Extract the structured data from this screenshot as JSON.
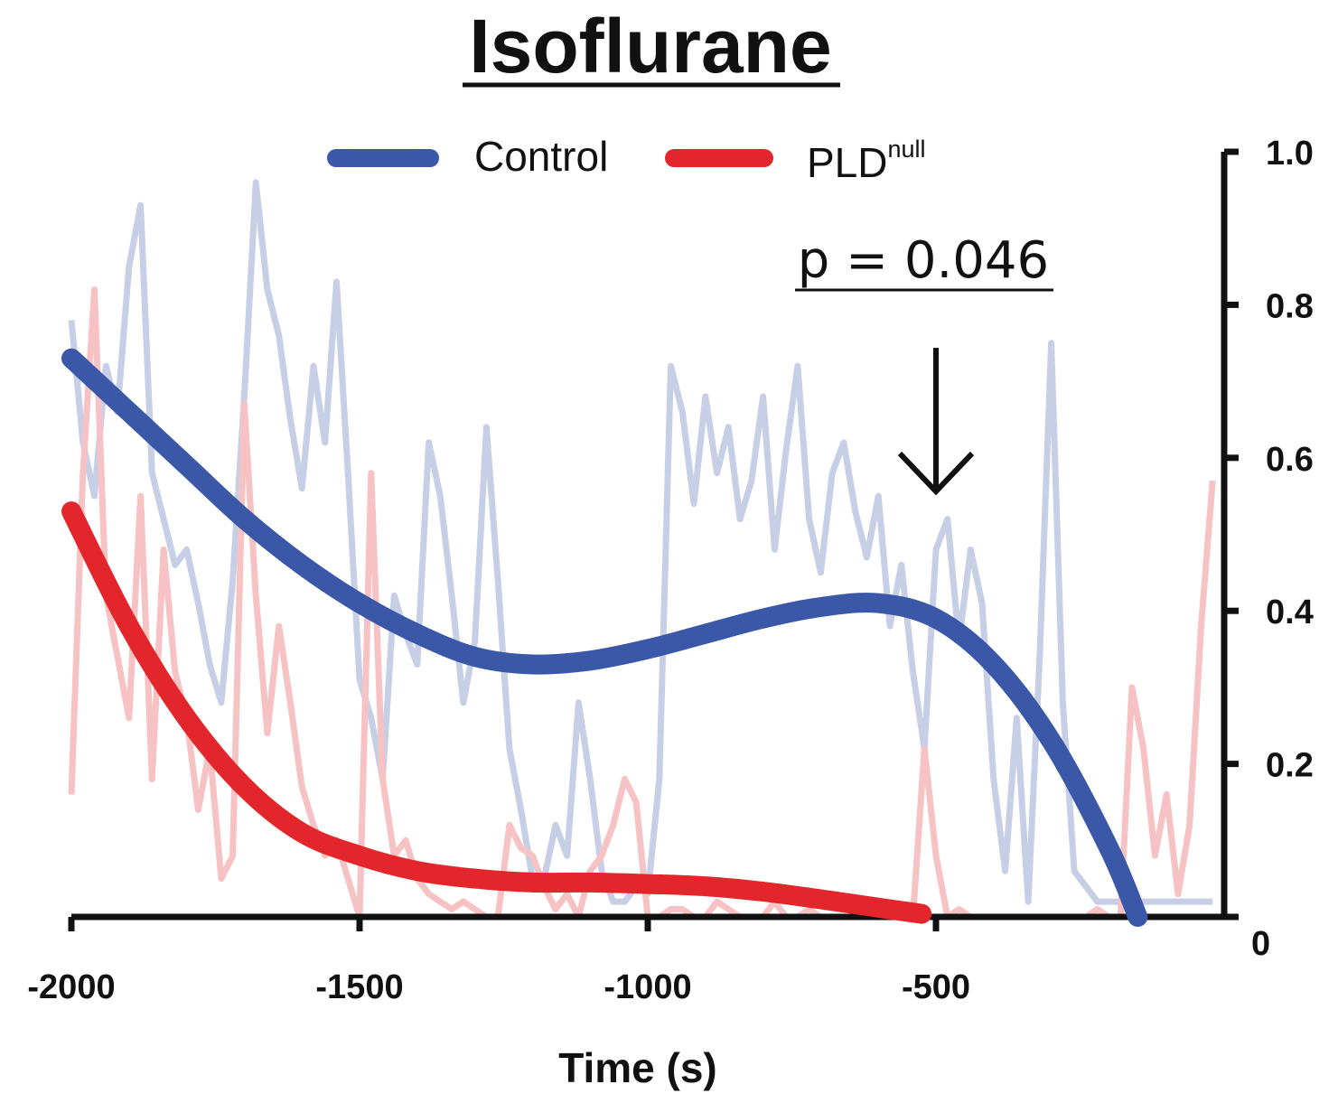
{
  "chart_data": {
    "type": "line",
    "title": "Isoflurane",
    "xlabel": "Time (s)",
    "ylabel": "",
    "xlim": [
      -2000,
      0
    ],
    "ylim": [
      0,
      1.0
    ],
    "y_axis_side": "right",
    "x_ticks": [
      -2000,
      -1500,
      -1000,
      -500
    ],
    "x_tick_labels": [
      "-2000",
      "-1500",
      "-1000",
      "-500"
    ],
    "y_ticks": [
      0,
      0.2,
      0.4,
      0.6,
      0.8,
      1.0
    ],
    "y_tick_labels": [
      "0",
      "0.2",
      "0.4",
      "0.6",
      "0.8",
      "1.0"
    ],
    "legend_position": "top",
    "grid": false,
    "annotation": {
      "text": "p = 0.046",
      "arrow_x": -500
    },
    "series": [
      {
        "name": "Control",
        "legend_main": "Control",
        "legend_sup": "",
        "color": "#3a57a8",
        "role": "fit",
        "x": [
          -2000,
          -1900,
          -1800,
          -1700,
          -1600,
          -1500,
          -1400,
          -1300,
          -1200,
          -1100,
          -1000,
          -900,
          -800,
          -700,
          -600,
          -500,
          -400,
          -300,
          -200,
          -150
        ],
        "y": [
          0.73,
          0.66,
          0.59,
          0.52,
          0.46,
          0.41,
          0.37,
          0.34,
          0.33,
          0.335,
          0.35,
          0.37,
          0.39,
          0.405,
          0.41,
          0.39,
          0.33,
          0.23,
          0.09,
          0.0
        ]
      },
      {
        "name": "PLD null",
        "legend_main": "PLD",
        "legend_sup": "null",
        "color": "#e3262b",
        "role": "fit",
        "x": [
          -2000,
          -1900,
          -1800,
          -1700,
          -1600,
          -1500,
          -1400,
          -1300,
          -1200,
          -1100,
          -1000,
          -900,
          -800,
          -700,
          -600,
          -525
        ],
        "y": [
          0.53,
          0.38,
          0.26,
          0.17,
          0.11,
          0.08,
          0.06,
          0.05,
          0.045,
          0.045,
          0.043,
          0.04,
          0.033,
          0.023,
          0.012,
          0.004
        ]
      },
      {
        "name": "Control raw",
        "color": "#c7cfe6",
        "role": "raw",
        "x": [
          -2000,
          -1980,
          -1960,
          -1940,
          -1920,
          -1900,
          -1880,
          -1860,
          -1840,
          -1820,
          -1800,
          -1780,
          -1760,
          -1740,
          -1720,
          -1700,
          -1680,
          -1660,
          -1640,
          -1620,
          -1600,
          -1580,
          -1560,
          -1540,
          -1520,
          -1500,
          -1480,
          -1460,
          -1440,
          -1420,
          -1400,
          -1380,
          -1360,
          -1340,
          -1320,
          -1300,
          -1280,
          -1260,
          -1240,
          -1220,
          -1200,
          -1180,
          -1160,
          -1140,
          -1120,
          -1100,
          -1080,
          -1060,
          -1040,
          -1020,
          -1000,
          -980,
          -960,
          -940,
          -920,
          -900,
          -880,
          -860,
          -840,
          -820,
          -800,
          -780,
          -760,
          -740,
          -720,
          -700,
          -680,
          -660,
          -640,
          -620,
          -600,
          -580,
          -560,
          -540,
          -520,
          -500,
          -480,
          -460,
          -440,
          -420,
          -400,
          -380,
          -360,
          -340,
          -320,
          -300,
          -280,
          -260,
          -240,
          -220,
          -200,
          -180,
          -160,
          -140,
          -120,
          -100,
          -80,
          -60,
          -40,
          -20
        ],
        "y": [
          0.78,
          0.62,
          0.55,
          0.72,
          0.66,
          0.85,
          0.93,
          0.58,
          0.52,
          0.46,
          0.48,
          0.41,
          0.33,
          0.28,
          0.44,
          0.68,
          0.96,
          0.82,
          0.76,
          0.65,
          0.56,
          0.72,
          0.62,
          0.83,
          0.58,
          0.31,
          0.26,
          0.18,
          0.42,
          0.37,
          0.33,
          0.62,
          0.55,
          0.42,
          0.28,
          0.36,
          0.64,
          0.44,
          0.22,
          0.14,
          0.05,
          0.05,
          0.12,
          0.08,
          0.28,
          0.18,
          0.06,
          0.02,
          0.02,
          0.04,
          0.03,
          0.18,
          0.72,
          0.66,
          0.54,
          0.68,
          0.58,
          0.64,
          0.52,
          0.57,
          0.68,
          0.48,
          0.61,
          0.72,
          0.52,
          0.45,
          0.58,
          0.62,
          0.53,
          0.47,
          0.55,
          0.38,
          0.46,
          0.32,
          0.22,
          0.48,
          0.52,
          0.36,
          0.48,
          0.41,
          0.18,
          0.06,
          0.26,
          0.02,
          0.34,
          0.75,
          0.28,
          0.06,
          0.04,
          0.02,
          0.02,
          0.02,
          0.02,
          0.02,
          0.02,
          0.02,
          0.02,
          0.02,
          0.02,
          0.02
        ]
      },
      {
        "name": "PLD null raw",
        "color": "#f7c2c3",
        "role": "raw",
        "x": [
          -2000,
          -1980,
          -1960,
          -1940,
          -1920,
          -1900,
          -1880,
          -1860,
          -1840,
          -1820,
          -1800,
          -1780,
          -1760,
          -1740,
          -1720,
          -1700,
          -1680,
          -1660,
          -1640,
          -1620,
          -1600,
          -1580,
          -1560,
          -1540,
          -1520,
          -1500,
          -1480,
          -1460,
          -1440,
          -1420,
          -1400,
          -1380,
          -1360,
          -1340,
          -1320,
          -1300,
          -1280,
          -1260,
          -1240,
          -1220,
          -1200,
          -1180,
          -1160,
          -1140,
          -1120,
          -1100,
          -1080,
          -1060,
          -1040,
          -1020,
          -1000,
          -980,
          -960,
          -940,
          -920,
          -900,
          -880,
          -860,
          -840,
          -820,
          -800,
          -780,
          -760,
          -740,
          -720,
          -700,
          -680,
          -660,
          -640,
          -620,
          -600,
          -580,
          -560,
          -540,
          -520,
          -500,
          -480,
          -460,
          -440,
          -420,
          -400,
          -380,
          -360,
          -340,
          -320,
          -300,
          -280,
          -260,
          -240,
          -220,
          -200,
          -180,
          -160,
          -140,
          -120,
          -100,
          -80,
          -60,
          -40,
          -20
        ],
        "y": [
          0.16,
          0.58,
          0.82,
          0.42,
          0.34,
          0.26,
          0.55,
          0.18,
          0.48,
          0.32,
          0.26,
          0.14,
          0.22,
          0.05,
          0.08,
          0.67,
          0.42,
          0.24,
          0.38,
          0.28,
          0.17,
          0.12,
          0.08,
          0.1,
          0.05,
          0.0,
          0.58,
          0.18,
          0.08,
          0.1,
          0.05,
          0.03,
          0.02,
          0.01,
          0.02,
          0.01,
          0.0,
          0.0,
          0.12,
          0.09,
          0.08,
          0.04,
          0.01,
          0.03,
          0.0,
          0.06,
          0.08,
          0.12,
          0.18,
          0.15,
          0.0,
          0.0,
          0.01,
          0.01,
          0.0,
          0.0,
          0.02,
          0.01,
          0.0,
          0.0,
          0.0,
          0.02,
          0.0,
          0.0,
          0.01,
          0.0,
          0.0,
          0.0,
          0.0,
          0.0,
          0.0,
          0.0,
          0.0,
          0.0,
          0.22,
          0.08,
          0.0,
          0.01,
          0.0,
          0.0,
          0.0,
          0.0,
          0.0,
          0.0,
          0.0,
          0.0,
          0.0,
          0.0,
          0.0,
          0.01,
          0.0,
          0.0,
          0.3,
          0.22,
          0.08,
          0.16,
          0.03,
          0.12,
          0.38,
          0.57
        ]
      }
    ]
  }
}
